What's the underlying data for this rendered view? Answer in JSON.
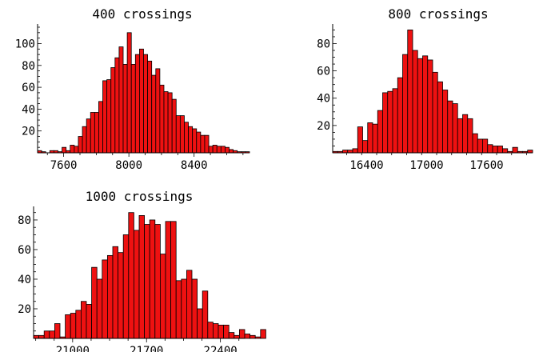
{
  "chart_data": [
    {
      "type": "bar",
      "title": "400 crossings",
      "xlim": [
        7440,
        8740
      ],
      "ylim": [
        0,
        115
      ],
      "x_ticks": [
        7600,
        8000,
        8400
      ],
      "y_ticks": [
        20,
        40,
        60,
        80,
        100
      ],
      "bar_color": "#ee1111",
      "bin_width": 25,
      "bin_start": 7440,
      "values": [
        2,
        1,
        0,
        2,
        2,
        1,
        5,
        2,
        7,
        6,
        15,
        24,
        31,
        37,
        37,
        47,
        66,
        67,
        78,
        87,
        97,
        81,
        110,
        81,
        90,
        95,
        90,
        84,
        71,
        77,
        62,
        56,
        55,
        49,
        34,
        34,
        28,
        24,
        22,
        19,
        16,
        16,
        6,
        7,
        6,
        6,
        5,
        3,
        2,
        1,
        1,
        1
      ]
    },
    {
      "type": "bar",
      "title": "800 crossings",
      "xlim": [
        16060,
        18060
      ],
      "ylim": [
        0,
        92
      ],
      "x_ticks": [
        16400,
        17000,
        17600
      ],
      "y_ticks": [
        20,
        40,
        60,
        80
      ],
      "bar_color": "#ee1111",
      "bin_width": 50,
      "bin_start": 16060,
      "values": [
        1,
        1,
        2,
        2,
        3,
        19,
        9,
        22,
        21,
        31,
        44,
        45,
        47,
        55,
        72,
        90,
        75,
        69,
        71,
        68,
        59,
        52,
        46,
        38,
        36,
        25,
        28,
        25,
        14,
        10,
        10,
        6,
        5,
        5,
        3,
        1,
        4,
        1,
        1,
        2
      ]
    },
    {
      "type": "bar",
      "title": "1000 crossings",
      "xlim": [
        20630,
        22630
      ],
      "ylim": [
        0,
        87
      ],
      "x_ticks": [
        21000,
        21700,
        22400
      ],
      "y_ticks": [
        20,
        40,
        60,
        80
      ],
      "bar_color": "#ee1111",
      "bin_width": 50,
      "bin_start": 20630,
      "values": [
        2,
        2,
        5,
        5,
        10,
        1,
        16,
        17,
        19,
        25,
        23,
        48,
        40,
        53,
        56,
        62,
        58,
        70,
        85,
        73,
        83,
        77,
        80,
        77,
        57,
        79,
        79,
        39,
        40,
        46,
        40,
        20,
        32,
        11,
        10,
        9,
        9,
        4,
        2,
        6,
        3,
        2,
        1,
        6
      ]
    }
  ]
}
